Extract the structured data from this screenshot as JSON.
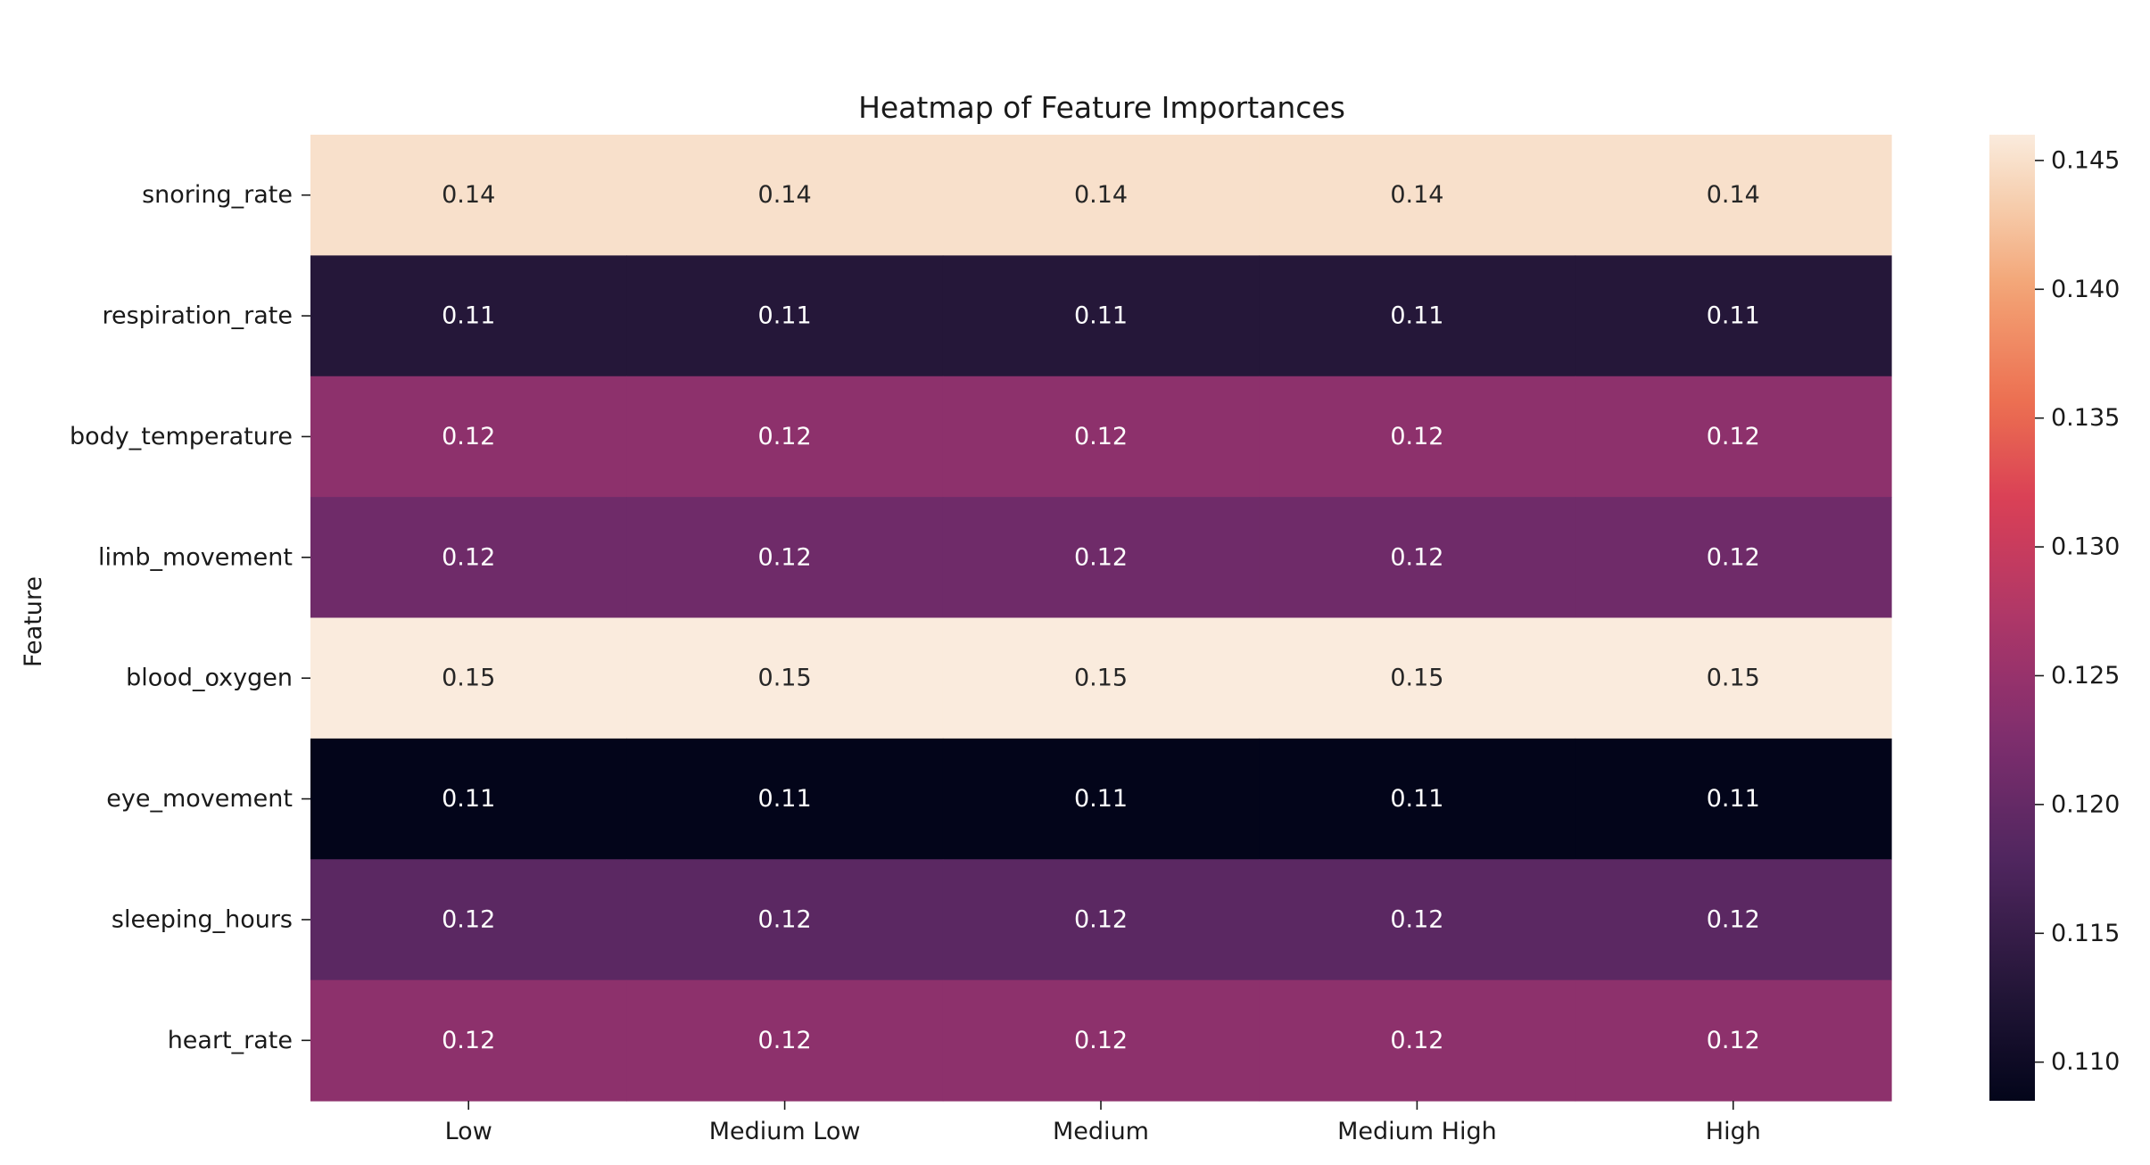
{
  "chart_data": {
    "type": "heatmap",
    "title": "Heatmap of Feature Importances",
    "xlabel": "",
    "ylabel": "Feature",
    "x_categories": [
      "Low",
      "Medium Low",
      "Medium",
      "Medium High",
      "High"
    ],
    "y_categories": [
      "snoring_rate",
      "respiration_rate",
      "body_temperature",
      "limb_movement",
      "blood_oxygen",
      "eye_movement",
      "sleeping_hours",
      "heart_rate"
    ],
    "values": [
      [
        0.145,
        0.145,
        0.145,
        0.145,
        0.145
      ],
      [
        0.113,
        0.113,
        0.113,
        0.113,
        0.113
      ],
      [
        0.124,
        0.124,
        0.124,
        0.124,
        0.124
      ],
      [
        0.121,
        0.121,
        0.121,
        0.121,
        0.121
      ],
      [
        0.146,
        0.146,
        0.146,
        0.146,
        0.146
      ],
      [
        0.108,
        0.108,
        0.108,
        0.108,
        0.108
      ],
      [
        0.119,
        0.119,
        0.119,
        0.119,
        0.119
      ],
      [
        0.124,
        0.124,
        0.124,
        0.124,
        0.124
      ]
    ],
    "cell_labels": [
      [
        "0.14",
        "0.14",
        "0.14",
        "0.14",
        "0.14"
      ],
      [
        "0.11",
        "0.11",
        "0.11",
        "0.11",
        "0.11"
      ],
      [
        "0.12",
        "0.12",
        "0.12",
        "0.12",
        "0.12"
      ],
      [
        "0.12",
        "0.12",
        "0.12",
        "0.12",
        "0.12"
      ],
      [
        "0.15",
        "0.15",
        "0.15",
        "0.15",
        "0.15"
      ],
      [
        "0.11",
        "0.11",
        "0.11",
        "0.11",
        "0.11"
      ],
      [
        "0.12",
        "0.12",
        "0.12",
        "0.12",
        "0.12"
      ],
      [
        "0.12",
        "0.12",
        "0.12",
        "0.12",
        "0.12"
      ]
    ],
    "colormap": "rocket",
    "colorbar": {
      "range": [
        0.1085,
        0.146
      ],
      "ticks": [
        0.11,
        0.115,
        0.12,
        0.125,
        0.13,
        0.135,
        0.14,
        0.145
      ],
      "tick_labels": [
        "0.110",
        "0.115",
        "0.120",
        "0.125",
        "0.130",
        "0.135",
        "0.140",
        "0.145"
      ]
    },
    "grid": false,
    "legend": "none"
  }
}
